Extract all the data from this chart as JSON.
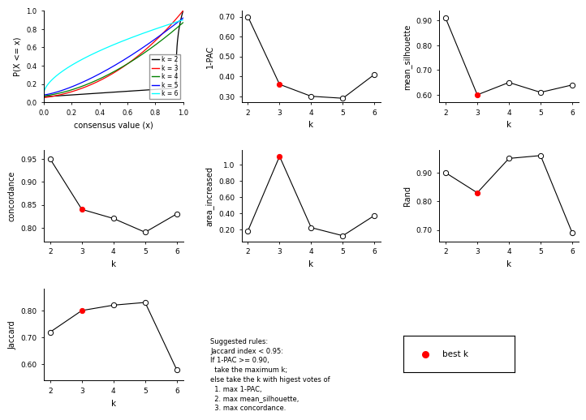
{
  "k_values": [
    2,
    3,
    4,
    5,
    6
  ],
  "pac_1minus": [
    0.7,
    0.36,
    0.3,
    0.29,
    0.41
  ],
  "mean_silhouette": [
    0.91,
    0.6,
    0.65,
    0.61,
    0.64
  ],
  "concordance": [
    0.95,
    0.84,
    0.82,
    0.79,
    0.83
  ],
  "area_increased": [
    0.18,
    1.1,
    0.22,
    0.12,
    0.37
  ],
  "rand": [
    0.9,
    0.83,
    0.95,
    0.96,
    0.69
  ],
  "jaccard": [
    0.72,
    0.8,
    0.82,
    0.83,
    0.58
  ],
  "best_k": 3,
  "cdf_colors": [
    "black",
    "red",
    "green",
    "blue",
    "cyan"
  ],
  "cdf_labels": [
    "k = 2",
    "k = 3",
    "k = 4",
    "k = 5",
    "k = 6"
  ],
  "annotation_text": "Suggested rules:\nJaccard index < 0.95:\nIf 1-PAC >= 0.90,\n  take the maximum k;\nelse take the k with higest votes of\n  1. max 1-PAC,\n  2. max mean_silhouette,\n  3. max concordance.",
  "best_k_label": "best k"
}
